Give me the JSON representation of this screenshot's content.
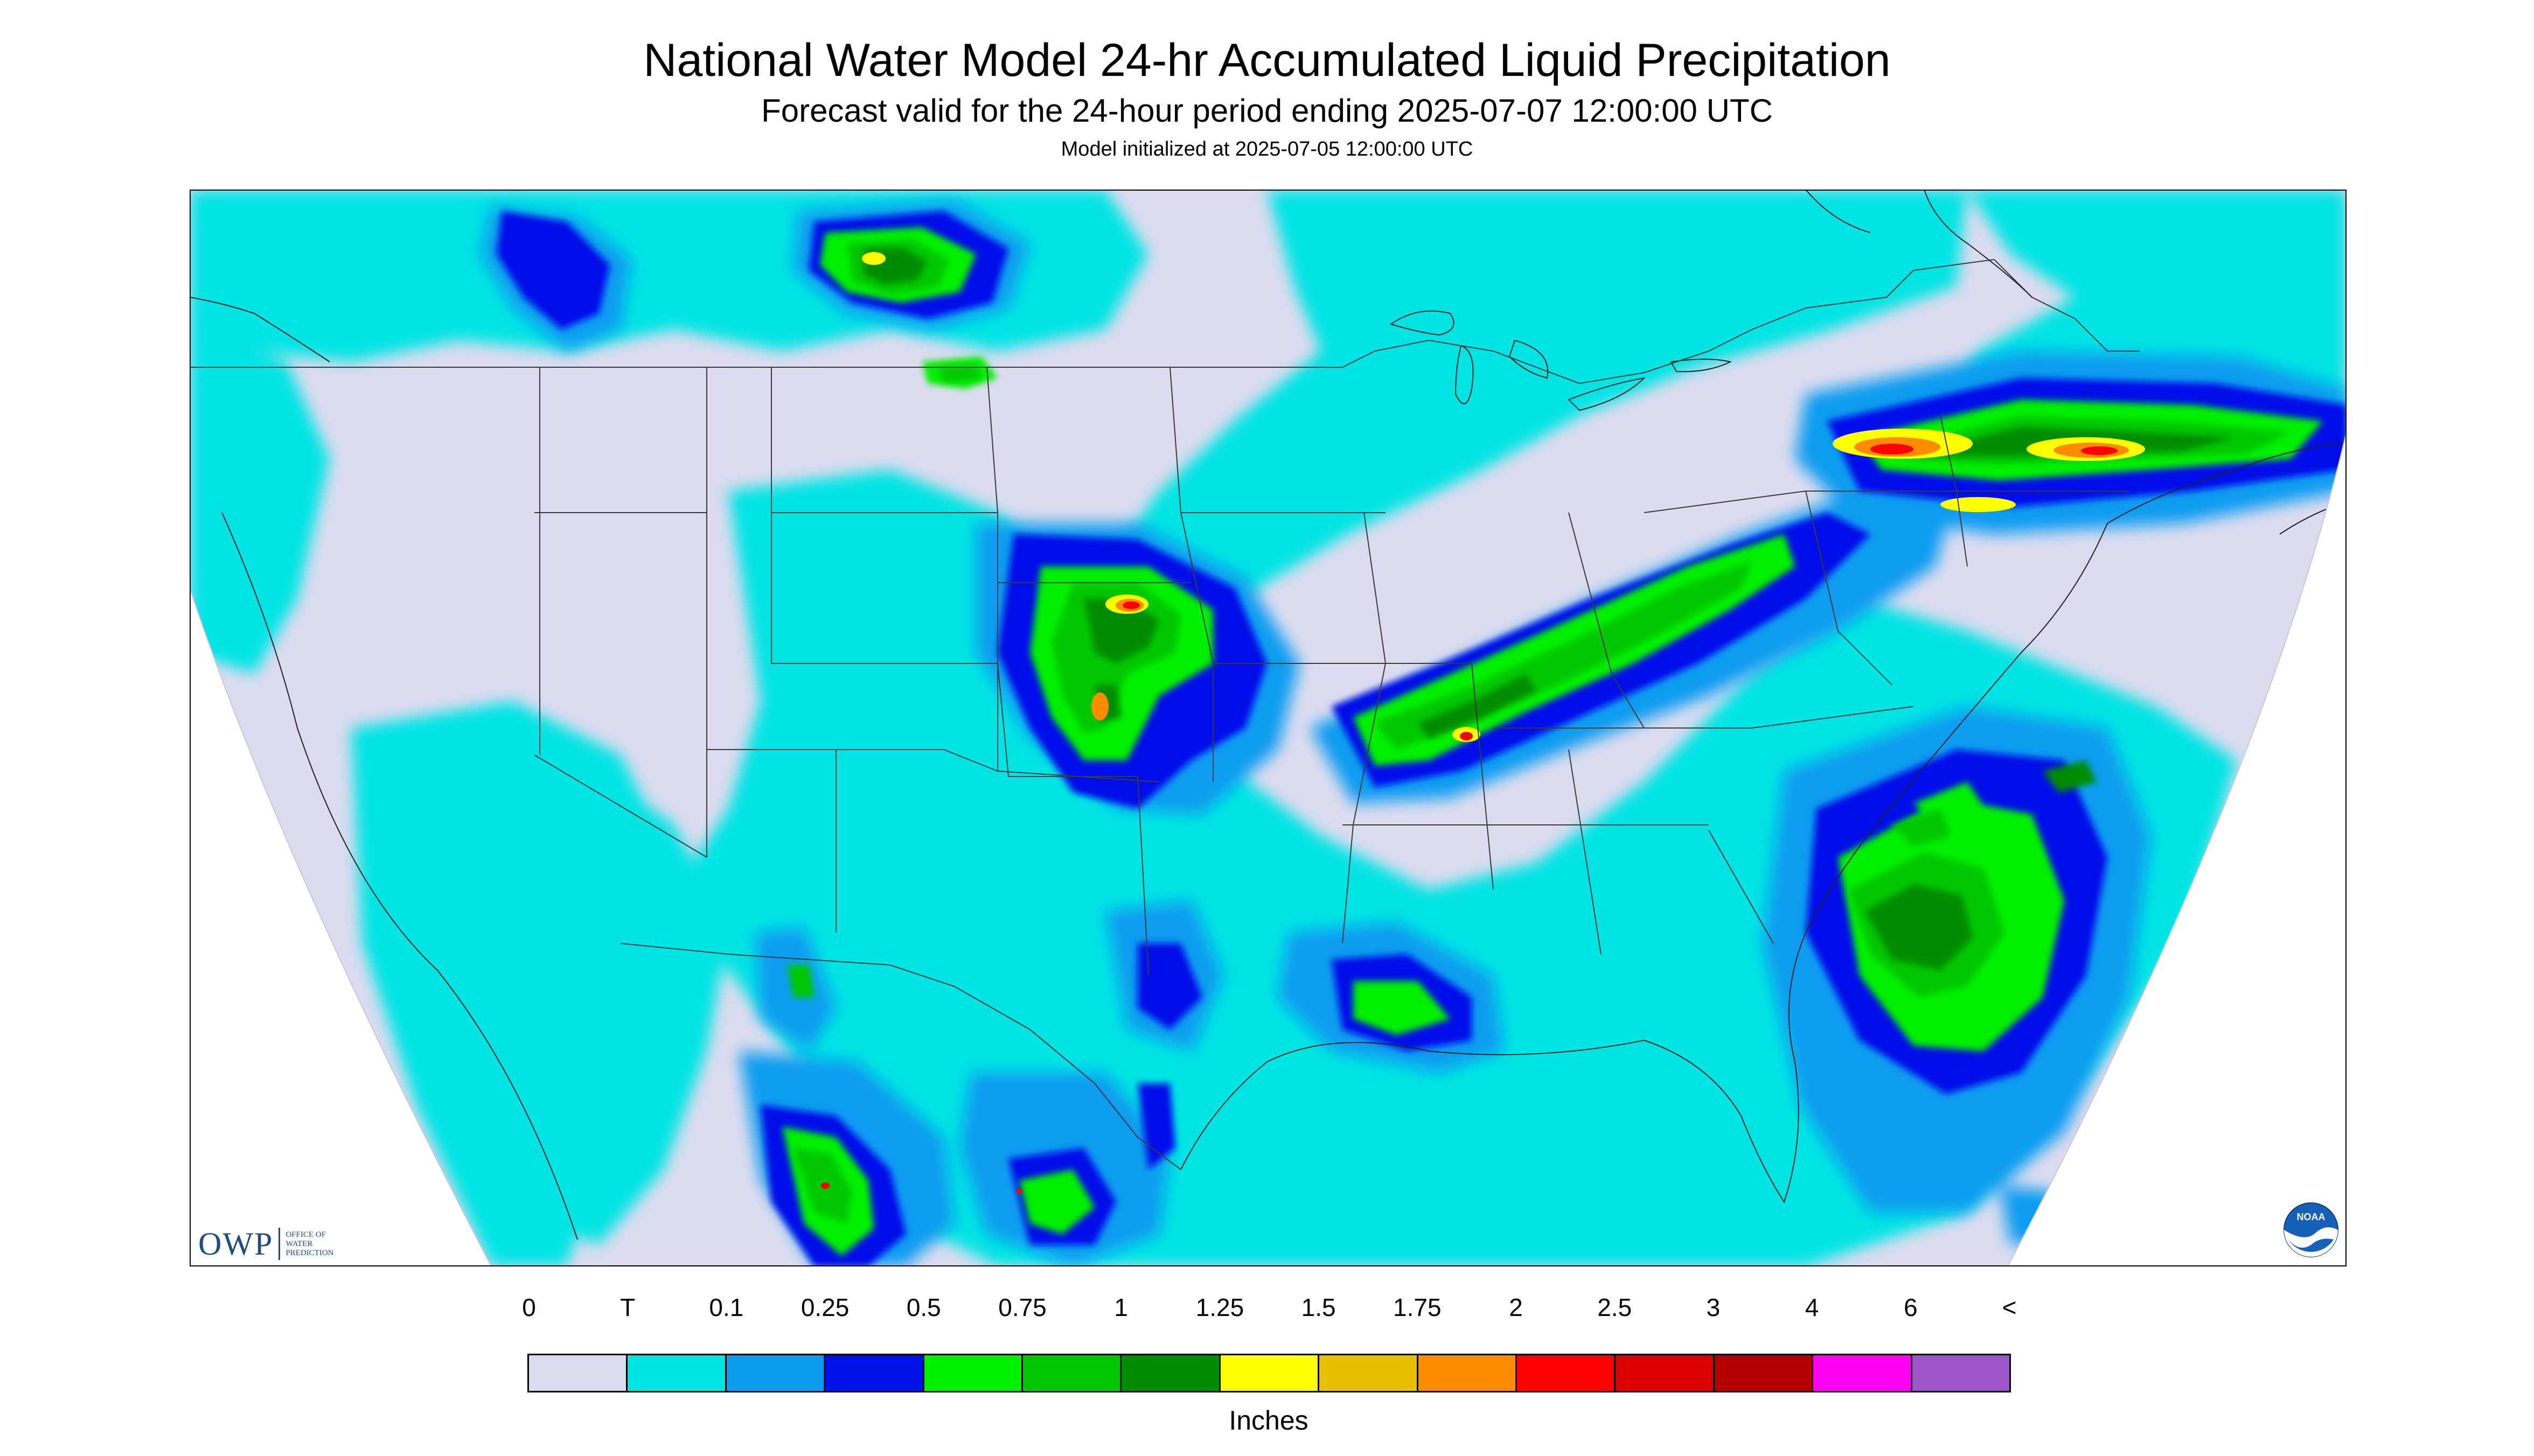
{
  "title": "National Water Model 24-hr Accumulated Liquid Precipitation",
  "subtitle": "Forecast valid for the 24-hour period ending 2025-07-07 12:00:00 UTC",
  "init_line": "Model initialized at 2025-07-05 12:00:00 UTC",
  "logos": {
    "owp_letters": "OWP",
    "owp_sub": [
      "OFFICE OF",
      "WATER",
      "PREDICTION"
    ],
    "noaa_text": "NOAA"
  },
  "legend": {
    "units": "Inches",
    "tick_labels": [
      "0",
      "T",
      "0.1",
      "0.25",
      "0.5",
      "0.75",
      "1",
      "1.25",
      "1.5",
      "1.75",
      "2",
      "2.5",
      "3",
      "4",
      "6",
      "<"
    ],
    "colors": [
      "#dcdcf0",
      "#00e4e4",
      "#0b9cf0",
      "#0010e8",
      "#00f000",
      "#00c800",
      "#008c00",
      "#ffff00",
      "#e8c000",
      "#ff8c00",
      "#ff0000",
      "#dc0000",
      "#b40000",
      "#ff00f0",
      "#9b55c8"
    ]
  },
  "map": {
    "nodata_color": "#ffffff",
    "background_color": "#dcdcf0",
    "border_color": "#3a3a3a"
  }
}
